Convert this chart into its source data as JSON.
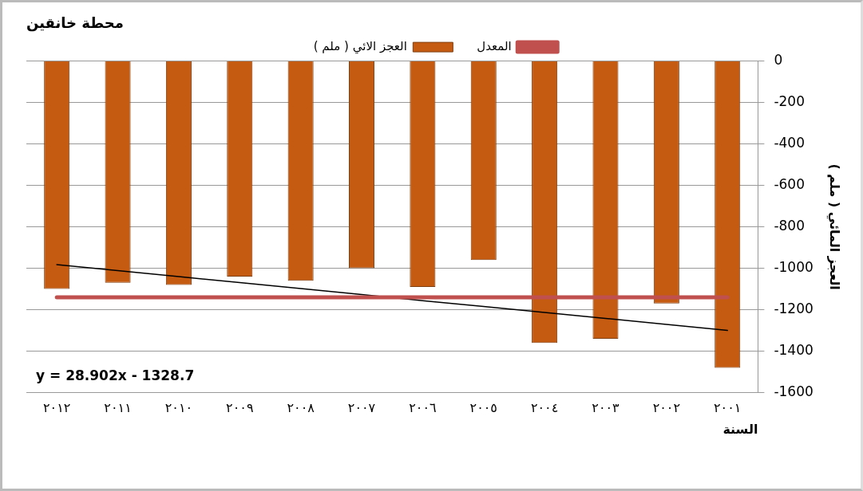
{
  "chart_data": {
    "type": "bar",
    "title": "محطة خانقين",
    "xlabel": "السنة",
    "ylabel": "العجز المائي ( ملم )",
    "categories": [
      "٢٠١٢",
      "٢٠١١",
      "٢٠١٠",
      "٢٠٠٩",
      "٢٠٠٨",
      "٢٠٠٧",
      "٢٠٠٦",
      "٢٠٠٥",
      "٢٠٠٤",
      "٢٠٠٣",
      "٢٠٠٢",
      "٢٠٠١"
    ],
    "series": [
      {
        "name": "العجز الائي ( ملم )",
        "color": "#c55a11",
        "values": [
          -1100,
          -1070,
          -1080,
          -1040,
          -1060,
          -1000,
          -1090,
          -960,
          -1360,
          -1340,
          -1170,
          -1480
        ]
      },
      {
        "name": "المعدل",
        "type": "line",
        "color": "#c0504d",
        "values": [
          -1140,
          -1140,
          -1140,
          -1140,
          -1140,
          -1140,
          -1140,
          -1140,
          -1140,
          -1140,
          -1140,
          -1140
        ]
      },
      {
        "type": "line",
        "color": "#000000",
        "values": [
          -982,
          -1011,
          -1040,
          -1069,
          -1098,
          -1127,
          -1156,
          -1184,
          -1213,
          -1242,
          -1271,
          -1300
        ]
      }
    ],
    "ylim": [
      -1600,
      0
    ],
    "yticks": [
      -1600,
      -1400,
      -1200,
      -1000,
      -800,
      -600,
      -400,
      -200,
      0
    ],
    "grid": "y",
    "legend": "top",
    "marker": "none",
    "annotations": [
      "y = 28.902x - 1328.7"
    ]
  }
}
